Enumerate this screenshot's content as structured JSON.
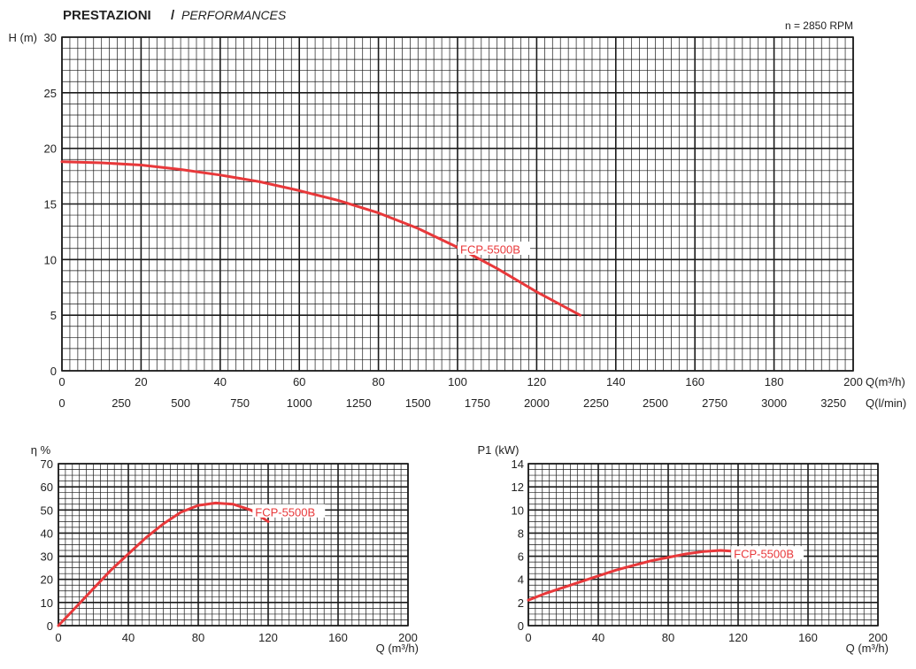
{
  "header": {
    "title_bold": "PRESTAZIONI",
    "title_sep": " / ",
    "title_italic": "PERFORMANCES",
    "rpm": "n = 2850 RPM"
  },
  "colors": {
    "curve": "#e8383a",
    "grid": "#1a1a1a"
  },
  "chart_data": [
    {
      "type": "line",
      "ylabel": "H (m)",
      "xlabel": "Q(m³/h)",
      "xlabel2": "Q(l/min)",
      "xlim": [
        0,
        200
      ],
      "ylim": [
        0,
        30
      ],
      "xticks": [
        "0",
        "20",
        "40",
        "60",
        "80",
        "100",
        "120",
        "140",
        "160",
        "180",
        "200"
      ],
      "yticks": [
        "0",
        "5",
        "10",
        "15",
        "20",
        "25",
        "30"
      ],
      "xticks2": [
        "0",
        "250",
        "500",
        "750",
        "1000",
        "1250",
        "1500",
        "1750",
        "2000",
        "2250",
        "2500",
        "2750",
        "3000",
        "3250"
      ],
      "grid": true,
      "series": [
        {
          "name": "FCP-5500B",
          "x": [
            0,
            10,
            20,
            30,
            40,
            50,
            60,
            70,
            80,
            90,
            100,
            110,
            120,
            131
          ],
          "y": [
            18.8,
            18.7,
            18.5,
            18.1,
            17.6,
            17.0,
            16.2,
            15.3,
            14.2,
            12.8,
            11.1,
            9.2,
            7.1,
            5.0
          ]
        }
      ]
    },
    {
      "type": "line",
      "ylabel": "η %",
      "xlabel": "Q (m³/h)",
      "xlim": [
        0,
        200
      ],
      "ylim": [
        0,
        70
      ],
      "xticks": [
        "0",
        "40",
        "80",
        "120",
        "160",
        "200"
      ],
      "yticks": [
        "0",
        "10",
        "20",
        "30",
        "40",
        "50",
        "60",
        "70"
      ],
      "grid": true,
      "series": [
        {
          "name": "FCP-5500B",
          "x": [
            0,
            10,
            20,
            30,
            40,
            50,
            60,
            70,
            80,
            90,
            100,
            110,
            120
          ],
          "y": [
            0,
            8,
            16,
            24,
            31,
            38,
            44,
            49,
            52,
            53,
            52.5,
            50,
            45
          ]
        }
      ]
    },
    {
      "type": "line",
      "ylabel": "P1 (kW)",
      "xlabel": "Q (m³/h)",
      "xlim": [
        0,
        200
      ],
      "ylim": [
        0,
        14
      ],
      "xticks": [
        "0",
        "40",
        "80",
        "120",
        "160",
        "200"
      ],
      "yticks": [
        "0",
        "2",
        "4",
        "6",
        "8",
        "10",
        "12",
        "14"
      ],
      "grid": true,
      "series": [
        {
          "name": "FCP-5500B",
          "x": [
            0,
            10,
            20,
            30,
            40,
            50,
            60,
            70,
            80,
            90,
            100,
            110,
            120
          ],
          "y": [
            2.2,
            2.8,
            3.3,
            3.8,
            4.3,
            4.8,
            5.2,
            5.6,
            5.9,
            6.2,
            6.4,
            6.5,
            6.4
          ]
        }
      ]
    }
  ]
}
